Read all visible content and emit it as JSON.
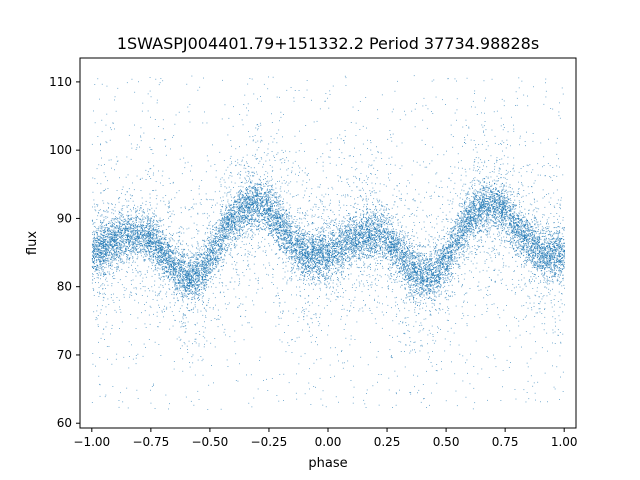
{
  "chart_data": {
    "type": "scatter",
    "title": "1SWASPJ004401.79+151332.2 Period 37734.98828s",
    "xlabel": "phase",
    "ylabel": "flux",
    "xlim": [
      -1.05,
      1.05
    ],
    "ylim": [
      59.3,
      113.5
    ],
    "x_ticks": [
      -1.0,
      -0.75,
      -0.5,
      -0.25,
      0.0,
      0.25,
      0.5,
      0.75,
      1.0
    ],
    "x_tick_labels": [
      "−1.00",
      "−0.75",
      "−0.50",
      "−0.25",
      "0.00",
      "0.25",
      "0.50",
      "0.75",
      "1.00"
    ],
    "y_ticks": [
      60,
      70,
      80,
      90,
      100,
      110
    ],
    "y_tick_labels": [
      "60",
      "70",
      "80",
      "90",
      "100",
      "110"
    ],
    "grid": false,
    "legend": "none",
    "marker_color": "#1f77b4",
    "series": [
      {
        "note_points": "phase-folded light curve; curve below gives the central trend of the dense band (phase, flux)",
        "trend": [
          [
            -1.0,
            85.0
          ],
          [
            -0.95,
            85.8
          ],
          [
            -0.9,
            86.8
          ],
          [
            -0.85,
            87.4
          ],
          [
            -0.8,
            87.8
          ],
          [
            -0.75,
            87.2
          ],
          [
            -0.7,
            85.0
          ],
          [
            -0.65,
            82.8
          ],
          [
            -0.6,
            81.5
          ],
          [
            -0.55,
            81.8
          ],
          [
            -0.5,
            84.0
          ],
          [
            -0.45,
            87.5
          ],
          [
            -0.4,
            90.3
          ],
          [
            -0.35,
            91.6
          ],
          [
            -0.3,
            92.0
          ],
          [
            -0.25,
            91.2
          ],
          [
            -0.2,
            88.8
          ],
          [
            -0.15,
            86.2
          ],
          [
            -0.1,
            84.8
          ],
          [
            -0.05,
            84.6
          ],
          [
            0.0,
            85.0
          ],
          [
            0.05,
            85.8
          ],
          [
            0.1,
            86.8
          ],
          [
            0.15,
            87.4
          ],
          [
            0.2,
            87.8
          ],
          [
            0.25,
            87.2
          ],
          [
            0.3,
            85.0
          ],
          [
            0.35,
            82.8
          ],
          [
            0.4,
            81.5
          ],
          [
            0.45,
            81.8
          ],
          [
            0.5,
            84.0
          ],
          [
            0.55,
            87.5
          ],
          [
            0.6,
            90.3
          ],
          [
            0.65,
            91.6
          ],
          [
            0.7,
            92.0
          ],
          [
            0.75,
            91.2
          ],
          [
            0.8,
            88.8
          ],
          [
            0.85,
            86.2
          ],
          [
            0.9,
            84.8
          ],
          [
            0.95,
            84.6
          ],
          [
            1.0,
            85.0
          ]
        ],
        "band_halfwidth": 2.2,
        "scatter_range": [
          62,
          111
        ]
      }
    ]
  }
}
